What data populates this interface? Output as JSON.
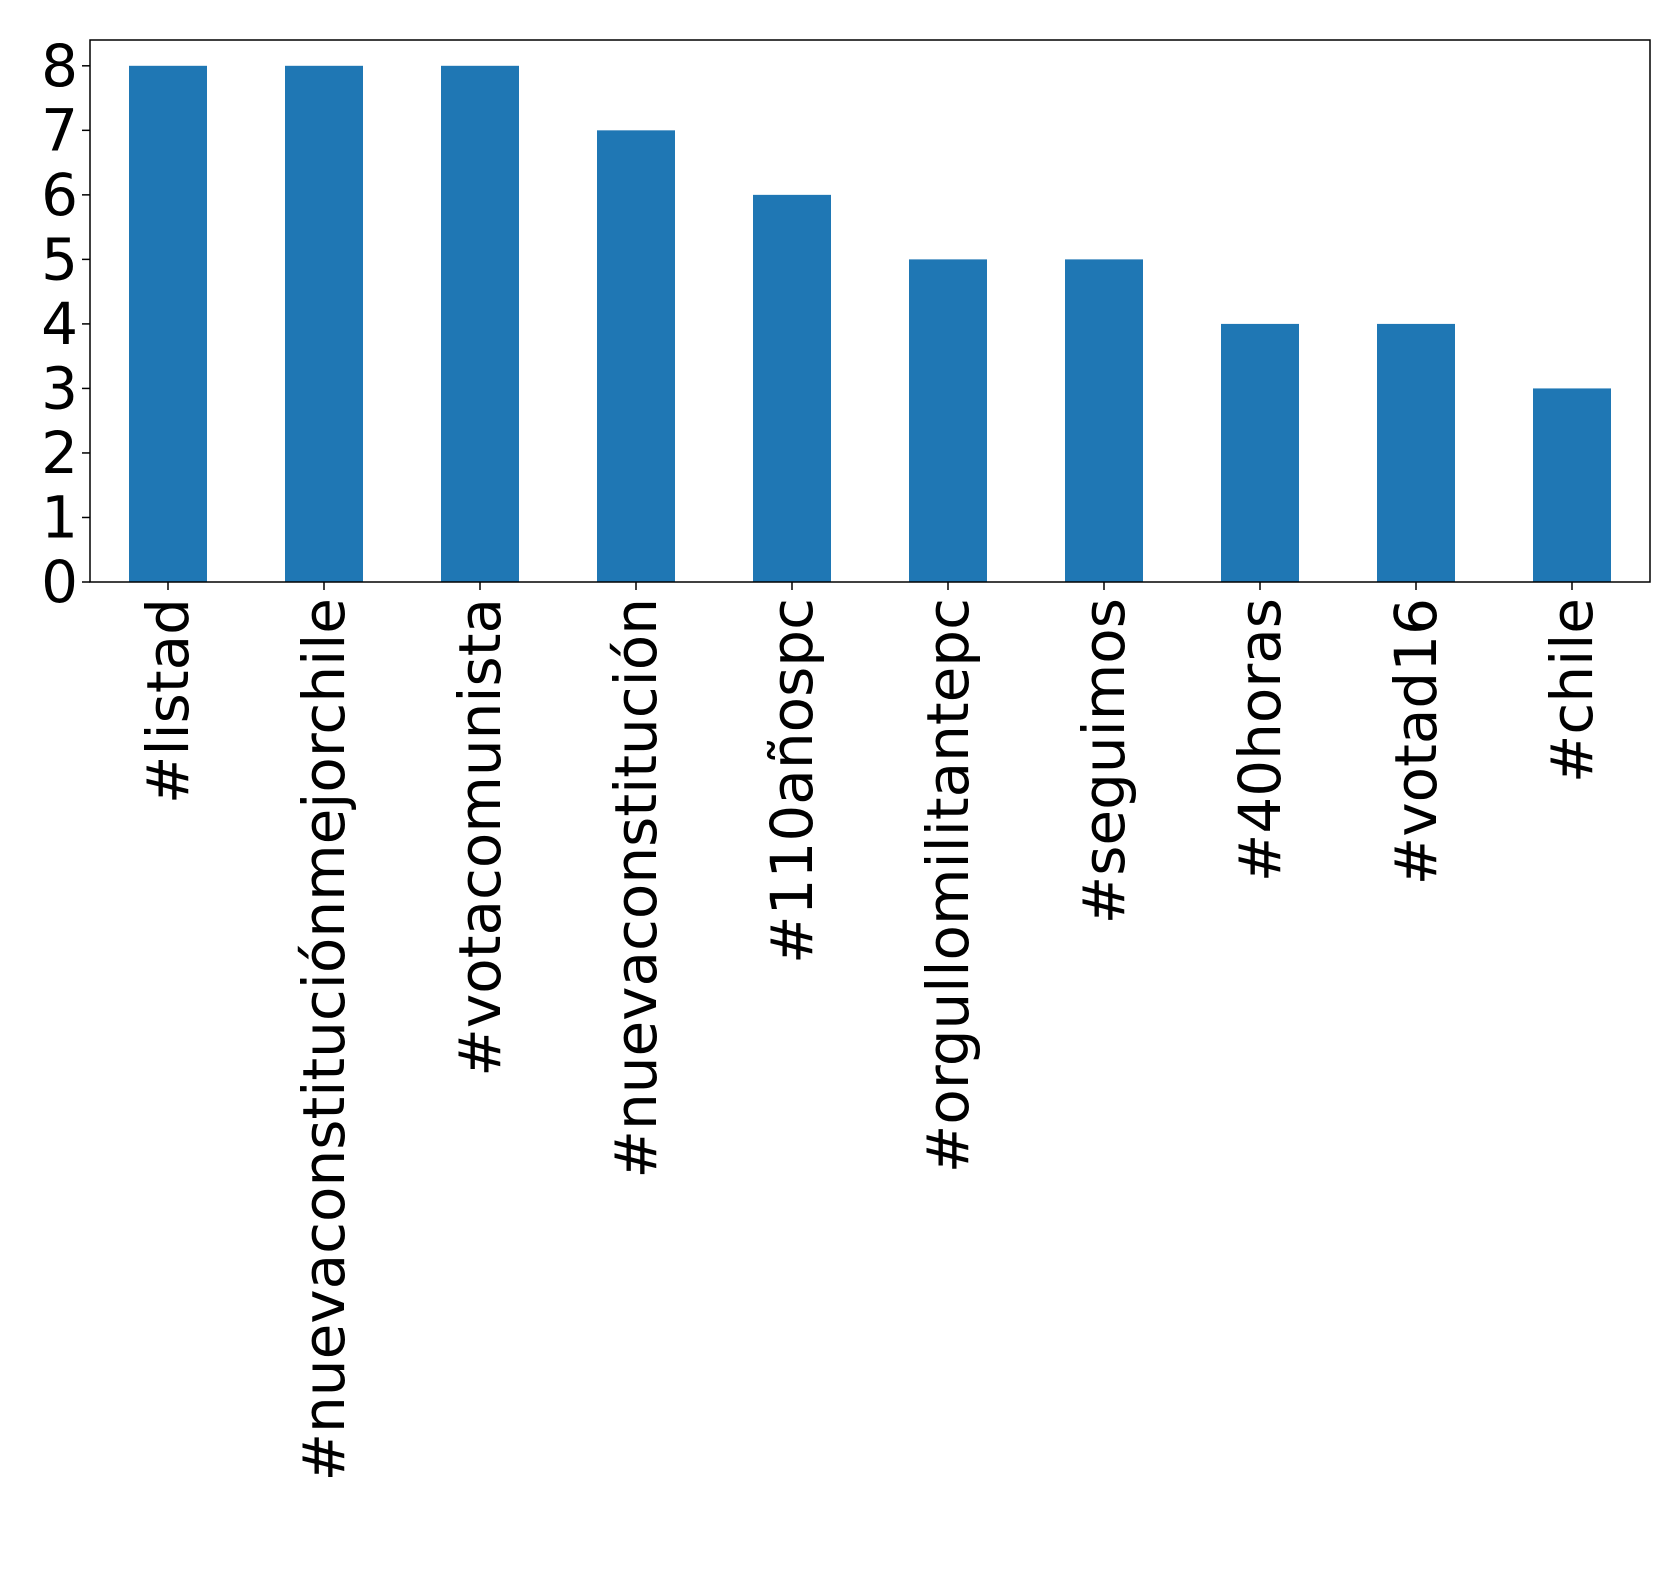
{
  "chart_data": {
    "type": "bar",
    "title": "",
    "xlabel": "",
    "ylabel": "",
    "categories": [
      "#listad",
      "#nuevaconstituciónmejorchile",
      "#votacomunista",
      "#nuevaconstitución",
      "#110añospc",
      "#orgullomilitantepc",
      "#seguimos",
      "#40horas",
      "#votad16",
      "#chile"
    ],
    "values": [
      8,
      8,
      8,
      7,
      6,
      5,
      5,
      4,
      4,
      3
    ],
    "ylim": [
      0,
      8.4
    ],
    "yticks": [
      0,
      1,
      2,
      3,
      4,
      5,
      6,
      7,
      8
    ],
    "bar_color": "#1f77b4",
    "grid": false,
    "legend": "none"
  }
}
